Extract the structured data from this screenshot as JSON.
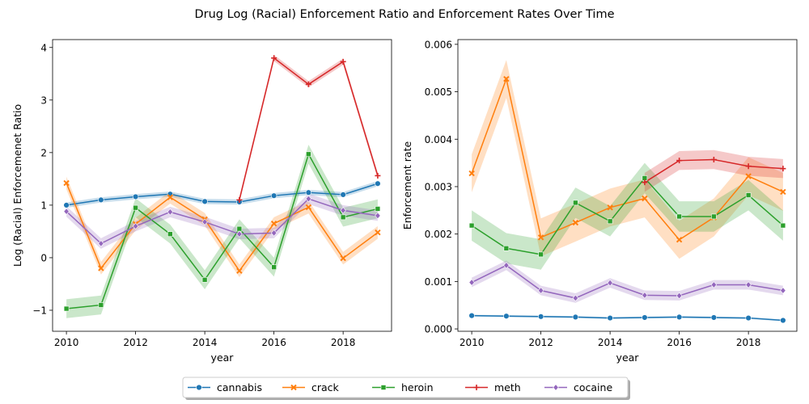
{
  "figure": {
    "suptitle": "Drug Log (Racial) Enforcement Ratio and Enforcement Rates Over Time"
  },
  "legend": {
    "placement": "bottom-center",
    "entries": [
      "cannabis",
      "crack",
      "heroin",
      "meth",
      "cocaine"
    ]
  },
  "colors": {
    "cannabis": "#1f77b4",
    "crack": "#ff7f0e",
    "heroin": "#2ca02c",
    "meth": "#d62728",
    "cocaine": "#9467bd"
  },
  "markers": {
    "cannabis": "circle",
    "crack": "x",
    "heroin": "square",
    "meth": "plus",
    "cocaine": "diamond"
  },
  "chart_data": [
    {
      "type": "line",
      "xlabel": "year",
      "ylabel": "Log (Racial) Enforcemenet Ratio",
      "xlim": [
        2009.6,
        2019.4
      ],
      "ylim": [
        -1.4,
        4.15
      ],
      "xticks": [
        "2010",
        "2012",
        "2014",
        "2016",
        "2018"
      ],
      "yticks": [
        "−1",
        "0",
        "1",
        "2",
        "3",
        "4"
      ],
      "xtick_values": [
        2010,
        2012,
        2014,
        2016,
        2018
      ],
      "ytick_values": [
        -1,
        0,
        1,
        2,
        3,
        4
      ],
      "grid": false,
      "x": [
        2010,
        2011,
        2012,
        2013,
        2014,
        2015,
        2016,
        2017,
        2018,
        2019
      ],
      "series": [
        {
          "name": "cannabis",
          "values": [
            1.0,
            1.1,
            1.16,
            1.21,
            1.07,
            1.06,
            1.18,
            1.24,
            1.2,
            1.41
          ],
          "band": 0.05
        },
        {
          "name": "crack",
          "values": [
            1.42,
            -0.2,
            0.64,
            1.15,
            0.73,
            -0.25,
            0.65,
            0.96,
            -0.01,
            0.48
          ],
          "band": 0.12
        },
        {
          "name": "heroin",
          "values": [
            -0.97,
            -0.9,
            0.95,
            0.45,
            -0.42,
            0.55,
            -0.18,
            1.97,
            0.77,
            0.93
          ],
          "band": 0.18
        },
        {
          "name": "cocaine",
          "values": [
            0.88,
            0.27,
            0.6,
            0.87,
            0.68,
            0.45,
            0.47,
            1.12,
            0.9,
            0.8
          ],
          "band": 0.1
        },
        {
          "name": "meth",
          "x": [
            2015,
            2016,
            2017,
            2018,
            2019
          ],
          "values": [
            1.1,
            3.8,
            3.3,
            3.73,
            1.56
          ],
          "band": 0.06
        }
      ]
    },
    {
      "type": "line",
      "xlabel": "year",
      "ylabel": "Enforcement rate",
      "xlim": [
        2009.6,
        2019.4
      ],
      "ylim": [
        -5e-05,
        0.0061
      ],
      "xticks": [
        "2010",
        "2012",
        "2014",
        "2016",
        "2018"
      ],
      "yticks": [
        "0.000",
        "0.001",
        "0.002",
        "0.003",
        "0.004",
        "0.005",
        "0.006"
      ],
      "xtick_values": [
        2010,
        2012,
        2014,
        2016,
        2018
      ],
      "ytick_values": [
        0,
        0.001,
        0.002,
        0.003,
        0.004,
        0.005,
        0.006
      ],
      "grid": false,
      "x": [
        2010,
        2011,
        2012,
        2013,
        2014,
        2015,
        2016,
        2017,
        2018,
        2019
      ],
      "series": [
        {
          "name": "cannabis",
          "values": [
            0.00028,
            0.00027,
            0.00026,
            0.00025,
            0.00023,
            0.00024,
            0.00025,
            0.00024,
            0.00023,
            0.00018
          ],
          "band": 2e-05
        },
        {
          "name": "crack",
          "values": [
            0.00328,
            0.00527,
            0.00193,
            0.00224,
            0.00256,
            0.00275,
            0.00188,
            0.00235,
            0.00322,
            0.00289
          ],
          "band": 0.0004
        },
        {
          "name": "heroin",
          "values": [
            0.00218,
            0.0017,
            0.00157,
            0.00266,
            0.00227,
            0.00318,
            0.00237,
            0.00237,
            0.00282,
            0.00218
          ],
          "band": 0.00032
        },
        {
          "name": "cocaine",
          "values": [
            0.00098,
            0.00134,
            0.00081,
            0.00065,
            0.00097,
            0.00071,
            0.0007,
            0.00093,
            0.00093,
            0.00081
          ],
          "band": 0.0001
        },
        {
          "name": "meth",
          "x": [
            2015,
            2016,
            2017,
            2018,
            2019
          ],
          "values": [
            0.00309,
            0.00355,
            0.00357,
            0.00343,
            0.00338
          ],
          "band": 0.0002
        }
      ]
    }
  ]
}
